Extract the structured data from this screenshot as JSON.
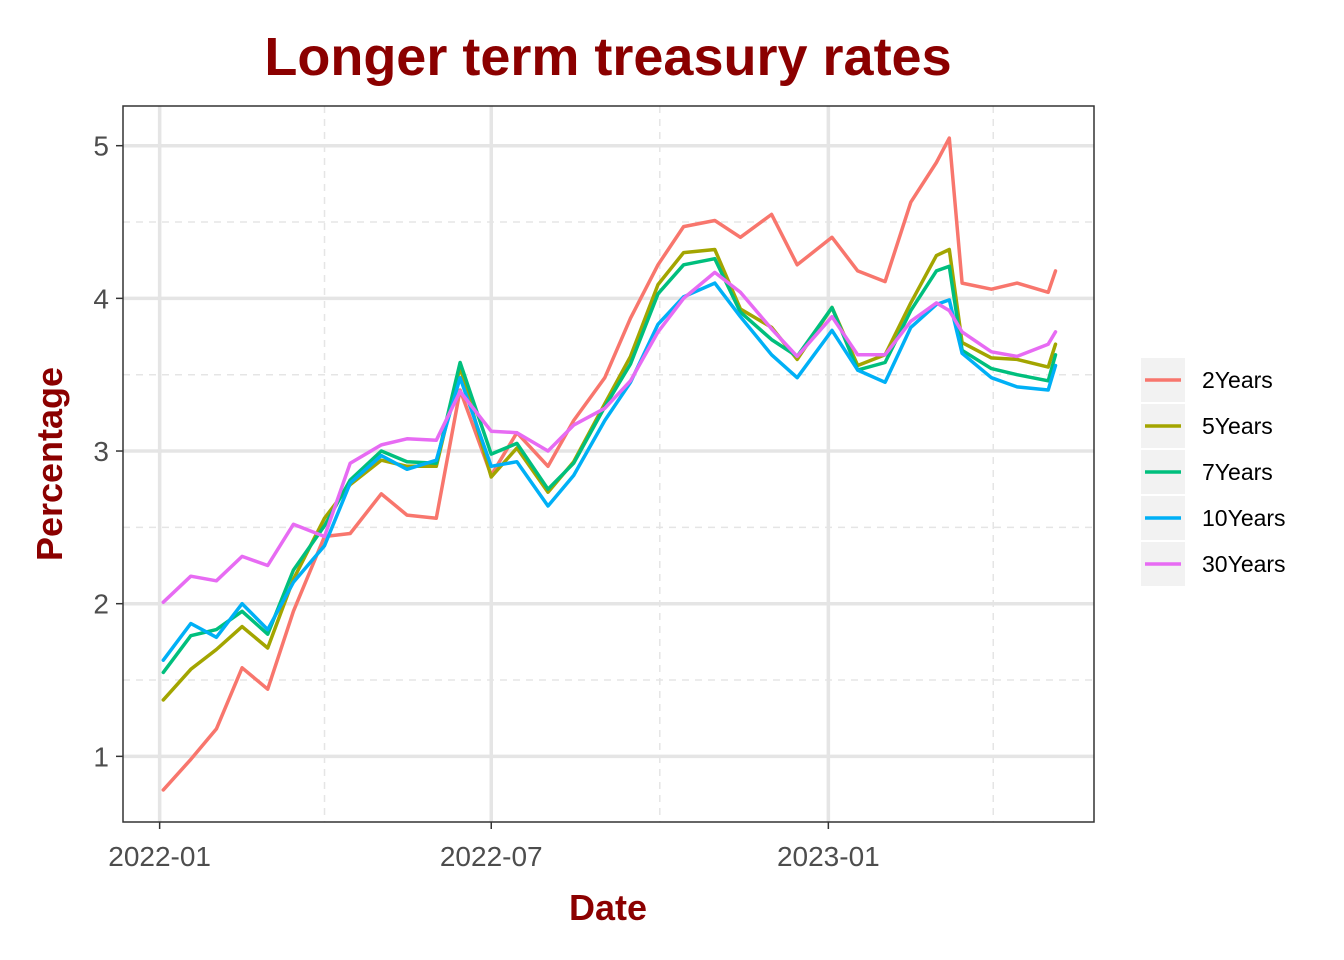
{
  "chart_data": {
    "type": "line",
    "title": "Longer term treasury rates",
    "xlabel": "Date",
    "ylabel": "Percentage",
    "x_tick_labels": [
      "2022-01",
      "2022-07",
      "2023-01"
    ],
    "x_ticks": [
      "2022-01-01",
      "2022-07-01",
      "2023-01-01"
    ],
    "x_minor_ticks": [
      "2022-04-01",
      "2022-10-01",
      "2023-04-01"
    ],
    "y_tick_labels": [
      "1",
      "2",
      "3",
      "4",
      "5"
    ],
    "y_ticks": [
      1,
      2,
      3,
      4,
      5
    ],
    "y_minor_ticks": [
      1.5,
      2.5,
      3.5,
      4.5
    ],
    "xlim": [
      "2021-12-12",
      "2023-05-26"
    ],
    "ylim": [
      0.57,
      5.26
    ],
    "grid": true,
    "legend_position": "right",
    "colors": {
      "title": "#8b0000",
      "axis_title": "#8b0000",
      "grid": "#e5e5e5",
      "panel_border": "#333333",
      "legend_key_bg": "#f2f2f2"
    },
    "x": [
      "2022-01-03",
      "2022-01-18",
      "2022-02-01",
      "2022-02-15",
      "2022-03-01",
      "2022-03-15",
      "2022-04-01",
      "2022-04-15",
      "2022-05-02",
      "2022-05-16",
      "2022-06-01",
      "2022-06-14",
      "2022-07-01",
      "2022-07-15",
      "2022-08-01",
      "2022-08-15",
      "2022-09-01",
      "2022-09-15",
      "2022-09-30",
      "2022-10-14",
      "2022-10-31",
      "2022-11-14",
      "2022-12-01",
      "2022-12-15",
      "2023-01-03",
      "2023-01-17",
      "2023-02-01",
      "2023-02-15",
      "2023-03-01",
      "2023-03-08",
      "2023-03-15",
      "2023-03-31",
      "2023-04-14",
      "2023-05-01",
      "2023-05-05"
    ],
    "series": [
      {
        "name": "2Years",
        "color": "#f8766d",
        "values": [
          0.78,
          0.98,
          1.18,
          1.58,
          1.44,
          1.95,
          2.44,
          2.46,
          2.72,
          2.58,
          2.56,
          3.4,
          2.84,
          3.12,
          2.9,
          3.2,
          3.48,
          3.87,
          4.22,
          4.47,
          4.51,
          4.4,
          4.55,
          4.22,
          4.4,
          4.18,
          4.11,
          4.63,
          4.89,
          5.05,
          4.1,
          4.06,
          4.1,
          4.04,
          4.18
        ]
      },
      {
        "name": "5Years",
        "color": "#a3a500",
        "values": [
          1.37,
          1.57,
          1.7,
          1.85,
          1.71,
          2.16,
          2.56,
          2.78,
          2.94,
          2.9,
          2.9,
          3.55,
          2.83,
          3.02,
          2.73,
          2.93,
          3.31,
          3.62,
          4.09,
          4.3,
          4.32,
          3.93,
          3.81,
          3.6,
          3.94,
          3.56,
          3.63,
          3.97,
          4.28,
          4.32,
          3.71,
          3.61,
          3.6,
          3.55,
          3.7
        ]
      },
      {
        "name": "7Years",
        "color": "#00bf7d",
        "values": [
          1.55,
          1.79,
          1.83,
          1.95,
          1.8,
          2.22,
          2.51,
          2.81,
          3.0,
          2.93,
          2.92,
          3.58,
          2.98,
          3.05,
          2.75,
          2.92,
          3.29,
          3.57,
          4.03,
          4.22,
          4.26,
          3.91,
          3.73,
          3.62,
          3.94,
          3.53,
          3.58,
          3.92,
          4.18,
          4.21,
          3.66,
          3.54,
          3.5,
          3.46,
          3.63
        ]
      },
      {
        "name": "10Years",
        "color": "#00b0f6",
        "values": [
          1.63,
          1.87,
          1.78,
          2.0,
          1.83,
          2.14,
          2.38,
          2.79,
          2.97,
          2.88,
          2.94,
          3.48,
          2.9,
          2.93,
          2.64,
          2.84,
          3.2,
          3.45,
          3.83,
          4.01,
          4.1,
          3.88,
          3.63,
          3.48,
          3.79,
          3.53,
          3.45,
          3.81,
          3.96,
          3.99,
          3.64,
          3.48,
          3.42,
          3.4,
          3.56
        ]
      },
      {
        "name": "30Years",
        "color": "#e76bf3",
        "values": [
          2.01,
          2.18,
          2.15,
          2.31,
          2.25,
          2.52,
          2.44,
          2.92,
          3.04,
          3.08,
          3.07,
          3.39,
          3.13,
          3.12,
          3.0,
          3.17,
          3.28,
          3.46,
          3.78,
          4.0,
          4.17,
          4.04,
          3.8,
          3.62,
          3.88,
          3.63,
          3.63,
          3.85,
          3.97,
          3.92,
          3.78,
          3.65,
          3.62,
          3.7,
          3.78
        ]
      }
    ]
  }
}
